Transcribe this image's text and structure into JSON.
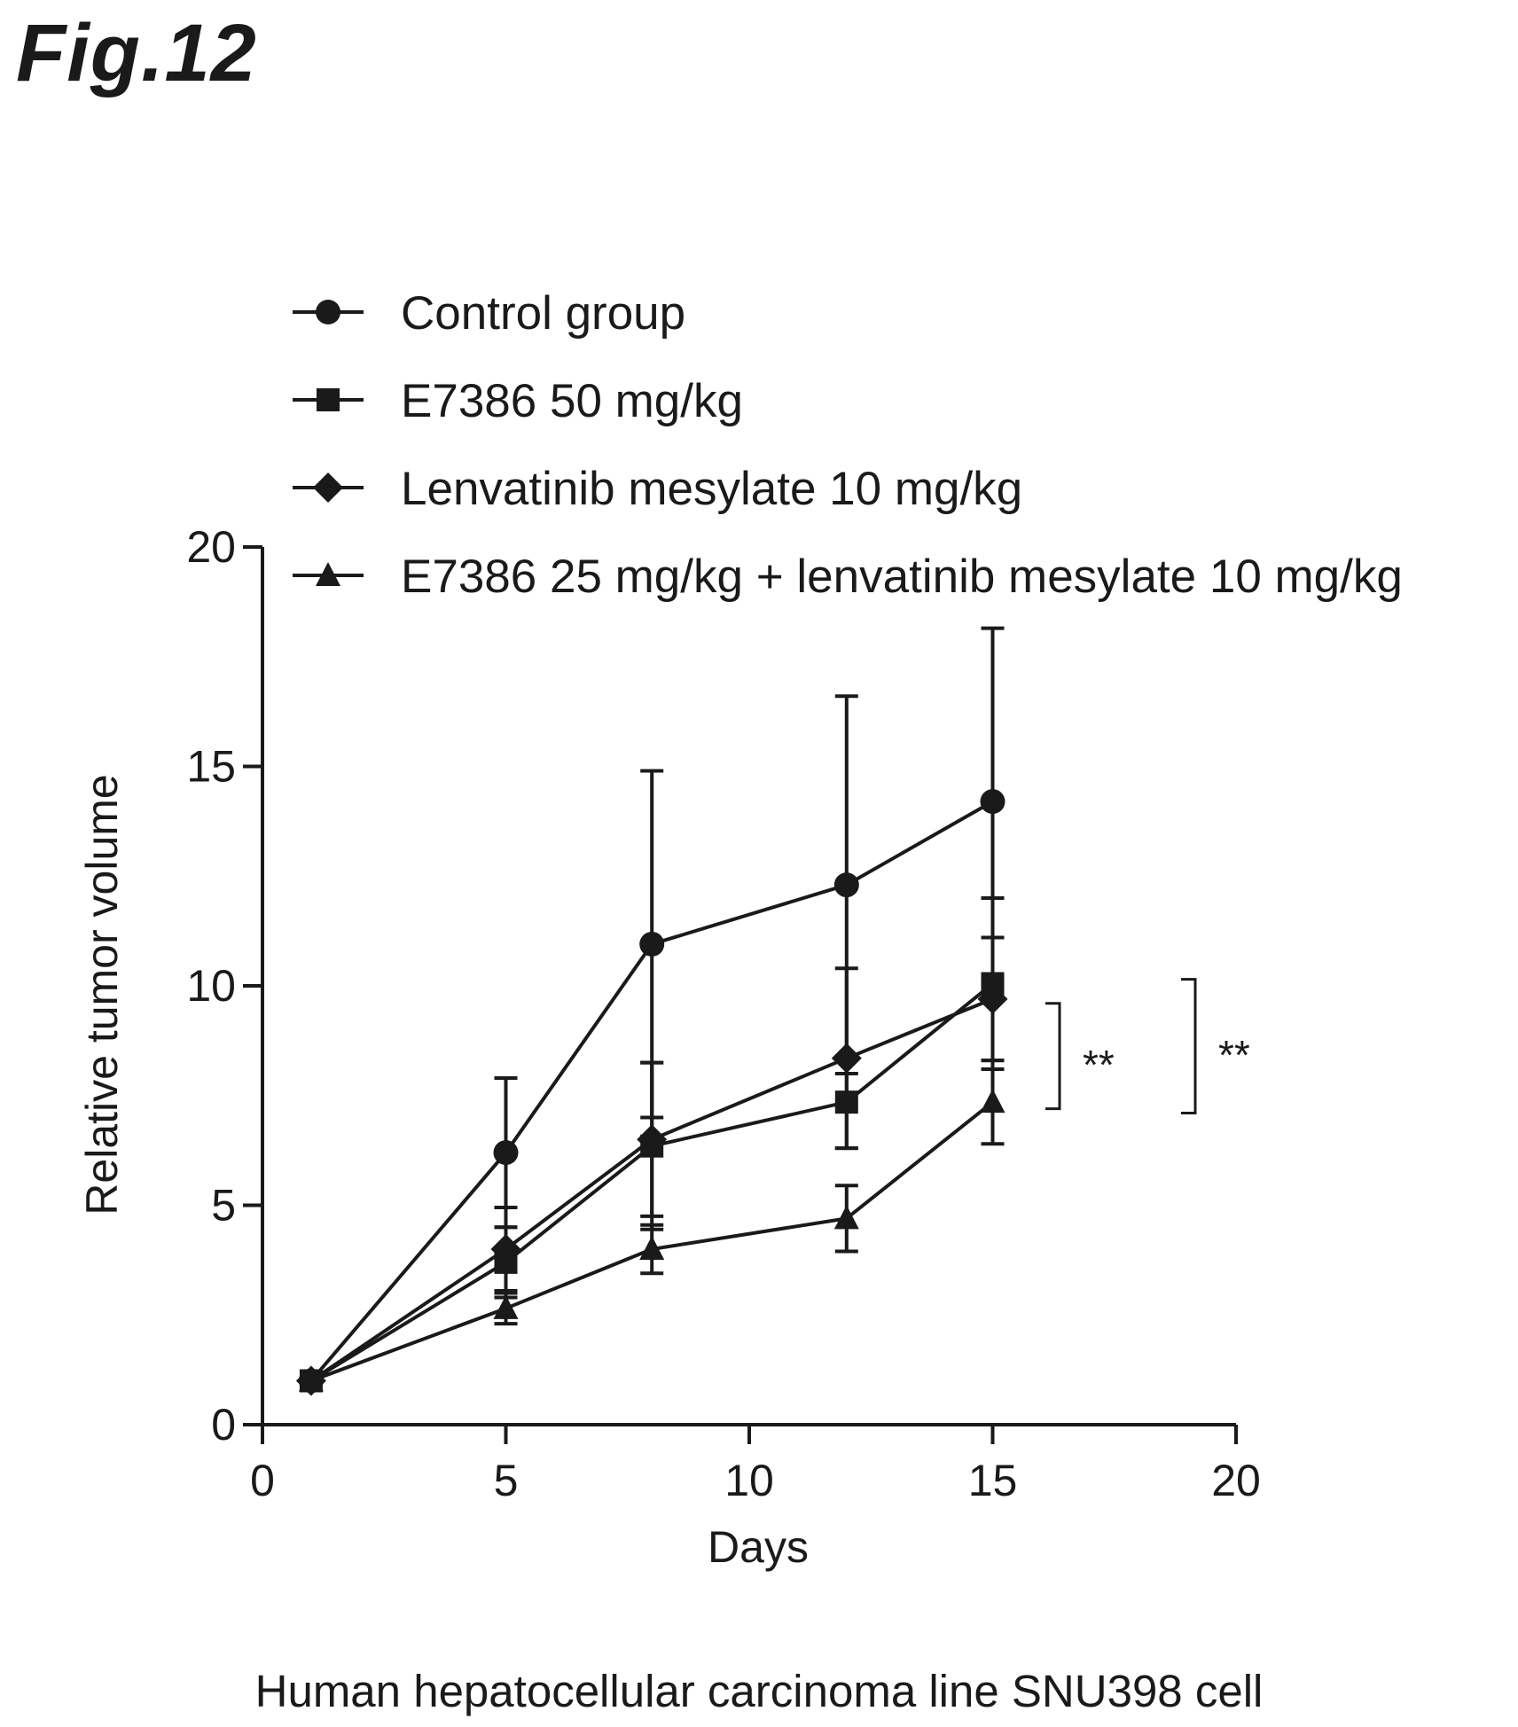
{
  "figure_label": "Fig.12",
  "caption": "Human hepatocellular carcinoma line SNU398 cell",
  "chart_data": {
    "type": "line",
    "title": "",
    "xlabel": "Days",
    "ylabel": "Relative tumor volume",
    "xlim": [
      0,
      20
    ],
    "ylim": [
      0,
      20
    ],
    "xticks": [
      0,
      5,
      10,
      15,
      20
    ],
    "yticks": [
      0,
      5,
      10,
      15,
      20
    ],
    "grid": false,
    "legend_position": "top",
    "x": [
      1,
      5,
      8,
      12,
      15
    ],
    "series": [
      {
        "name": "Control group",
        "marker": "circle",
        "values": [
          1.0,
          6.2,
          10.95,
          12.3,
          14.2
        ],
        "error": [
          0,
          1.7,
          3.95,
          4.3,
          3.95
        ]
      },
      {
        "name": "E7386 50 mg/kg",
        "marker": "square",
        "values": [
          1.0,
          3.7,
          6.35,
          7.35,
          10.05
        ],
        "error": [
          0,
          0.8,
          1.9,
          1.05,
          1.95
        ]
      },
      {
        "name": "Lenvatinib mesylate 10 mg/kg",
        "marker": "diamond",
        "values": [
          1.0,
          4.0,
          6.5,
          8.35,
          9.7
        ],
        "error": [
          0,
          0.95,
          1.75,
          2.05,
          1.4
        ]
      },
      {
        "name": "E7386 25 mg/kg + lenvatinib mesylate 10 mg/kg",
        "marker": "triangle",
        "values": [
          1.0,
          2.65,
          4.0,
          4.7,
          7.35
        ],
        "error": [
          0,
          0.35,
          0.55,
          0.75,
          0.95
        ]
      }
    ],
    "annotations": [
      {
        "text": "**",
        "bracket_y": [
          7.2,
          9.6
        ]
      },
      {
        "text": "**",
        "bracket_y": [
          7.1,
          10.15
        ]
      }
    ]
  }
}
